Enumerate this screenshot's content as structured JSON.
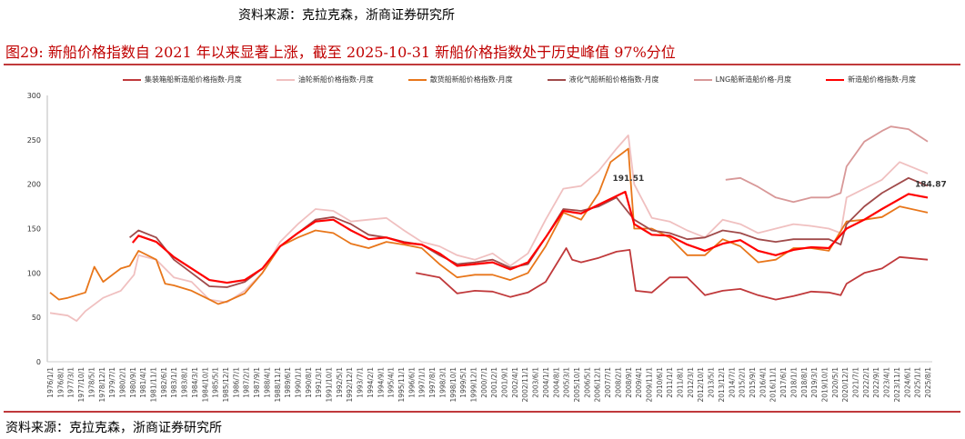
{
  "source_top": "资料来源：克拉克森，浙商证券研究所",
  "title": "图29:   新船价格指数自 2021 年以来显著上涨，截至 2025-10-31 新船价格指数处于历史峰值 97%分位",
  "source_bottom": "资料来源：克拉克森，浙商证券研究所",
  "chart_data": {
    "type": "line",
    "title": "",
    "xlabel": "",
    "ylabel": "",
    "ylim": [
      0,
      300
    ],
    "yticks": [
      0,
      50,
      100,
      150,
      200,
      250,
      300
    ],
    "grid": false,
    "legend": "top",
    "xticks": [
      "1976/1/1",
      "1976/8/1",
      "1977/3/1",
      "1977/10/1",
      "1978/5/1",
      "1978/12/1",
      "1979/7/1",
      "1980/2/1",
      "1980/9/1",
      "1981/4/1",
      "1981/11/1",
      "1982/6/1",
      "1983/1/1",
      "1983/8/1",
      "1984/3/1",
      "1984/10/1",
      "1985/5/1",
      "1985/12/1",
      "1986/7/1",
      "1987/2/1",
      "1987/9/1",
      "1988/4/1",
      "1988/11/1",
      "1989/6/1",
      "1990/1/1",
      "1990/8/1",
      "1991/3/1",
      "1991/10/1",
      "1992/5/1",
      "1992/12/1",
      "1993/7/1",
      "1994/2/1",
      "1994/9/1",
      "1995/4/1",
      "1995/11/1",
      "1996/6/1",
      "1997/1/1",
      "1997/8/1",
      "1998/3/1",
      "1998/10/1",
      "1999/5/1",
      "1999/12/1",
      "2000/7/1",
      "2001/2/1",
      "2001/9/1",
      "2002/4/1",
      "2002/11/1",
      "2003/6/1",
      "2004/1/1",
      "2004/8/1",
      "2005/3/1",
      "2005/10/1",
      "2006/5/1",
      "2006/12/1",
      "2007/7/1",
      "2008/2/1",
      "2008/9/1",
      "2009/4/1",
      "2009/11/1",
      "2010/6/1",
      "2011/1/1",
      "2011/8/1",
      "2012/3/1",
      "2012/10/1",
      "2013/5/1",
      "2013/12/1",
      "2014/7/1",
      "2015/2/1",
      "2015/9/1",
      "2016/4/1",
      "2016/11/1",
      "2017/6/1",
      "2018/1/1",
      "2018/8/1",
      "2019/3/1",
      "2019/10/1",
      "2020/5/1",
      "2020/12/1",
      "2021/7/1",
      "2022/2/1",
      "2022/9/1",
      "2023/4/1",
      "2023/11/1",
      "2024/6/1",
      "2025/1/1",
      "2025/8/1"
    ],
    "annotations": [
      {
        "text": "191.51",
        "x": "2008/7",
        "y": 191.51
      },
      {
        "text": "184.87",
        "x": "2025/8",
        "y": 184.87
      }
    ],
    "series": [
      {
        "name": "集装箱船新造船价格指数-月度",
        "color": "#c0393b",
        "points": [
          [
            "1996/9",
            100
          ],
          [
            "1998/1",
            95
          ],
          [
            "1999/1",
            77
          ],
          [
            "2000/1",
            80
          ],
          [
            "2001/1",
            79
          ],
          [
            "2002/1",
            73
          ],
          [
            "2003/1",
            78
          ],
          [
            "2004/1",
            90
          ],
          [
            "2005/3",
            128
          ],
          [
            "2005/7",
            115
          ],
          [
            "2006/1",
            112
          ],
          [
            "2007/1",
            117
          ],
          [
            "2008/1",
            124
          ],
          [
            "2008/10",
            126
          ],
          [
            "2009/2",
            80
          ],
          [
            "2010/1",
            78
          ],
          [
            "2011/1",
            95
          ],
          [
            "2012/1",
            95
          ],
          [
            "2013/1",
            75
          ],
          [
            "2014/1",
            80
          ],
          [
            "2015/1",
            82
          ],
          [
            "2016/1",
            75
          ],
          [
            "2017/1",
            70
          ],
          [
            "2018/1",
            74
          ],
          [
            "2019/1",
            79
          ],
          [
            "2020/1",
            78
          ],
          [
            "2020/9",
            75
          ],
          [
            "2021/1",
            88
          ],
          [
            "2022/1",
            100
          ],
          [
            "2023/1",
            105
          ],
          [
            "2024/1",
            118
          ],
          [
            "2025/8",
            115
          ]
        ]
      },
      {
        "name": "油轮新船价格指数-月度",
        "color": "#f0c0c0",
        "points": [
          [
            "1976/1",
            55
          ],
          [
            "1977/1",
            52
          ],
          [
            "1977/7",
            46
          ],
          [
            "1978/1",
            57
          ],
          [
            "1979/1",
            72
          ],
          [
            "1980/1",
            80
          ],
          [
            "1980/10",
            98
          ],
          [
            "1981/1",
            120
          ],
          [
            "1982/1",
            115
          ],
          [
            "1983/1",
            95
          ],
          [
            "1984/1",
            90
          ],
          [
            "1985/1",
            70
          ],
          [
            "1986/1",
            67
          ],
          [
            "1987/1",
            80
          ],
          [
            "1988/1",
            100
          ],
          [
            "1989/1",
            135
          ],
          [
            "1990/1",
            155
          ],
          [
            "1991/1",
            172
          ],
          [
            "1992/1",
            170
          ],
          [
            "1993/1",
            158
          ],
          [
            "1994/1",
            160
          ],
          [
            "1995/1",
            162
          ],
          [
            "1996/1",
            148
          ],
          [
            "1997/1",
            135
          ],
          [
            "1998/1",
            130
          ],
          [
            "1999/1",
            120
          ],
          [
            "2000/1",
            115
          ],
          [
            "2001/1",
            122
          ],
          [
            "2002/1",
            108
          ],
          [
            "2003/1",
            122
          ],
          [
            "2004/1",
            160
          ],
          [
            "2005/1",
            195
          ],
          [
            "2006/1",
            198
          ],
          [
            "2007/1",
            215
          ],
          [
            "2008/1",
            240
          ],
          [
            "2008/9",
            255
          ],
          [
            "2009/1",
            200
          ],
          [
            "2010/1",
            162
          ],
          [
            "2011/1",
            158
          ],
          [
            "2012/1",
            148
          ],
          [
            "2013/1",
            140
          ],
          [
            "2014/1",
            160
          ],
          [
            "2015/1",
            155
          ],
          [
            "2016/1",
            145
          ],
          [
            "2017/1",
            150
          ],
          [
            "2018/1",
            155
          ],
          [
            "2019/1",
            153
          ],
          [
            "2020/1",
            150
          ],
          [
            "2020/9",
            145
          ],
          [
            "2021/1",
            185
          ],
          [
            "2022/1",
            195
          ],
          [
            "2023/1",
            205
          ],
          [
            "2024/1",
            225
          ],
          [
            "2025/8",
            212
          ]
        ]
      },
      {
        "name": "散货船新船价格指数-月度",
        "color": "#e8761a",
        "points": [
          [
            "1976/1",
            78
          ],
          [
            "1976/7",
            70
          ],
          [
            "1977/1",
            72
          ],
          [
            "1978/1",
            78
          ],
          [
            "1978/7",
            107
          ],
          [
            "1979/1",
            90
          ],
          [
            "1980/1",
            105
          ],
          [
            "1980/7",
            108
          ],
          [
            "1981/1",
            125
          ],
          [
            "1982/1",
            115
          ],
          [
            "1982/7",
            88
          ],
          [
            "1983/1",
            86
          ],
          [
            "1984/1",
            80
          ],
          [
            "1985/1",
            70
          ],
          [
            "1985/7",
            65
          ],
          [
            "1986/1",
            68
          ],
          [
            "1987/1",
            77
          ],
          [
            "1988/1",
            100
          ],
          [
            "1989/1",
            130
          ],
          [
            "1990/1",
            140
          ],
          [
            "1991/1",
            148
          ],
          [
            "1992/1",
            145
          ],
          [
            "1993/1",
            133
          ],
          [
            "1994/1",
            128
          ],
          [
            "1995/1",
            135
          ],
          [
            "1996/1",
            132
          ],
          [
            "1997/1",
            128
          ],
          [
            "1998/1",
            110
          ],
          [
            "1999/1",
            95
          ],
          [
            "2000/1",
            98
          ],
          [
            "2001/1",
            98
          ],
          [
            "2002/1",
            92
          ],
          [
            "2003/1",
            100
          ],
          [
            "2004/1",
            130
          ],
          [
            "2005/1",
            168
          ],
          [
            "2006/1",
            160
          ],
          [
            "2007/1",
            190
          ],
          [
            "2007/9",
            225
          ],
          [
            "2008/9",
            240
          ],
          [
            "2009/1",
            150
          ],
          [
            "2010/1",
            150
          ],
          [
            "2011/1",
            140
          ],
          [
            "2012/1",
            120
          ],
          [
            "2013/1",
            120
          ],
          [
            "2014/1",
            138
          ],
          [
            "2015/1",
            130
          ],
          [
            "2016/1",
            112
          ],
          [
            "2017/1",
            115
          ],
          [
            "2018/1",
            128
          ],
          [
            "2019/1",
            128
          ],
          [
            "2020/1",
            125
          ],
          [
            "2021/1",
            158
          ],
          [
            "2022/1",
            160
          ],
          [
            "2023/1",
            163
          ],
          [
            "2024/1",
            175
          ],
          [
            "2025/8",
            168
          ]
        ]
      },
      {
        "name": "液化气船新船价格指数-月度",
        "color": "#a04a4a",
        "points": [
          [
            "1980/7",
            140
          ],
          [
            "1981/1",
            148
          ],
          [
            "1982/1",
            140
          ],
          [
            "1983/1",
            115
          ],
          [
            "1984/1",
            100
          ],
          [
            "1985/1",
            85
          ],
          [
            "1986/1",
            84
          ],
          [
            "1987/1",
            90
          ],
          [
            "1988/1",
            105
          ],
          [
            "1989/1",
            130
          ],
          [
            "1990/1",
            145
          ],
          [
            "1991/1",
            160
          ],
          [
            "1992/1",
            163
          ],
          [
            "1993/1",
            155
          ],
          [
            "1994/1",
            143
          ],
          [
            "1995/1",
            140
          ],
          [
            "1996/1",
            135
          ],
          [
            "1997/1",
            132
          ],
          [
            "1998/1",
            120
          ],
          [
            "1999/1",
            110
          ],
          [
            "2000/1",
            112
          ],
          [
            "2001/1",
            115
          ],
          [
            "2002/1",
            106
          ],
          [
            "2003/1",
            110
          ],
          [
            "2004/1",
            140
          ],
          [
            "2005/1",
            172
          ],
          [
            "2006/1",
            170
          ],
          [
            "2007/1",
            175
          ],
          [
            "2008/1",
            185
          ],
          [
            "2009/1",
            160
          ],
          [
            "2010/1",
            148
          ],
          [
            "2011/1",
            145
          ],
          [
            "2012/1",
            138
          ],
          [
            "2013/1",
            140
          ],
          [
            "2014/1",
            148
          ],
          [
            "2015/1",
            145
          ],
          [
            "2016/1",
            138
          ],
          [
            "2017/1",
            135
          ],
          [
            "2018/1",
            138
          ],
          [
            "2019/1",
            138
          ],
          [
            "2020/1",
            138
          ],
          [
            "2020/9",
            132
          ],
          [
            "2021/1",
            155
          ],
          [
            "2022/1",
            175
          ],
          [
            "2023/1",
            190
          ],
          [
            "2024/7",
            207
          ],
          [
            "2025/8",
            198
          ]
        ]
      },
      {
        "name": "LNG船新造船价格-月度",
        "color": "#d89898",
        "points": [
          [
            "2014/3",
            205
          ],
          [
            "2015/1",
            207
          ],
          [
            "2016/1",
            197
          ],
          [
            "2017/1",
            185
          ],
          [
            "2018/1",
            180
          ],
          [
            "2019/1",
            185
          ],
          [
            "2020/1",
            185
          ],
          [
            "2020/9",
            190
          ],
          [
            "2021/1",
            220
          ],
          [
            "2022/1",
            248
          ],
          [
            "2023/1",
            260
          ],
          [
            "2023/7",
            265
          ],
          [
            "2024/7",
            262
          ],
          [
            "2025/8",
            248
          ]
        ]
      },
      {
        "name": "新造船价格指数-月度",
        "color": "#ff0000",
        "points": [
          [
            "1980/9",
            134
          ],
          [
            "1981/1",
            142
          ],
          [
            "1982/1",
            135
          ],
          [
            "1983/1",
            118
          ],
          [
            "1984/1",
            105
          ],
          [
            "1985/1",
            92
          ],
          [
            "1986/1",
            89
          ],
          [
            "1987/1",
            92
          ],
          [
            "1988/1",
            105
          ],
          [
            "1989/1",
            130
          ],
          [
            "1990/1",
            145
          ],
          [
            "1991/1",
            158
          ],
          [
            "1992/1",
            160
          ],
          [
            "1993/1",
            148
          ],
          [
            "1994/1",
            138
          ],
          [
            "1995/1",
            140
          ],
          [
            "1996/1",
            134
          ],
          [
            "1997/1",
            132
          ],
          [
            "1998/1",
            122
          ],
          [
            "1999/1",
            108
          ],
          [
            "2000/1",
            110
          ],
          [
            "2001/1",
            112
          ],
          [
            "2002/1",
            104
          ],
          [
            "2003/1",
            112
          ],
          [
            "2004/1",
            140
          ],
          [
            "2005/1",
            170
          ],
          [
            "2006/1",
            167
          ],
          [
            "2007/1",
            177
          ],
          [
            "2008/7",
            191.51
          ],
          [
            "2009/1",
            155
          ],
          [
            "2010/1",
            143
          ],
          [
            "2011/1",
            142
          ],
          [
            "2012/1",
            132
          ],
          [
            "2013/1",
            125
          ],
          [
            "2014/1",
            133
          ],
          [
            "2015/1",
            137
          ],
          [
            "2016/1",
            125
          ],
          [
            "2017/1",
            120
          ],
          [
            "2018/1",
            126
          ],
          [
            "2019/1",
            129
          ],
          [
            "2020/1",
            128
          ],
          [
            "2021/1",
            150
          ],
          [
            "2022/1",
            160
          ],
          [
            "2023/1",
            172
          ],
          [
            "2024/7",
            189
          ],
          [
            "2025/8",
            184.87
          ]
        ]
      }
    ]
  }
}
